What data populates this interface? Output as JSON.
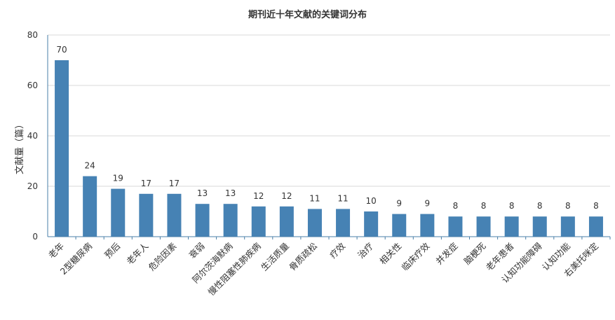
{
  "chart_data": {
    "type": "bar",
    "title": "期刊近十年文献的关键词分布",
    "xlabel": "",
    "ylabel": "文献量（篇）",
    "ylim": [
      0,
      80
    ],
    "yticks": [
      0,
      20,
      40,
      60,
      80
    ],
    "grid": true,
    "bar_color": "#4682b4",
    "categories": [
      "老年",
      "2型糖尿病",
      "预后",
      "老年人",
      "危险因素",
      "衰弱",
      "阿尔茨海默病",
      "慢性阻塞性肺疾病",
      "生活质量",
      "骨质疏松",
      "疗效",
      "治疗",
      "相关性",
      "临床疗效",
      "并发症",
      "脑梗死",
      "老年患者",
      "认知功能障碍",
      "认知功能",
      "右美托咪定"
    ],
    "values": [
      70,
      24,
      19,
      17,
      17,
      13,
      13,
      12,
      12,
      11,
      11,
      10,
      9,
      9,
      8,
      8,
      8,
      8,
      8,
      8
    ]
  }
}
